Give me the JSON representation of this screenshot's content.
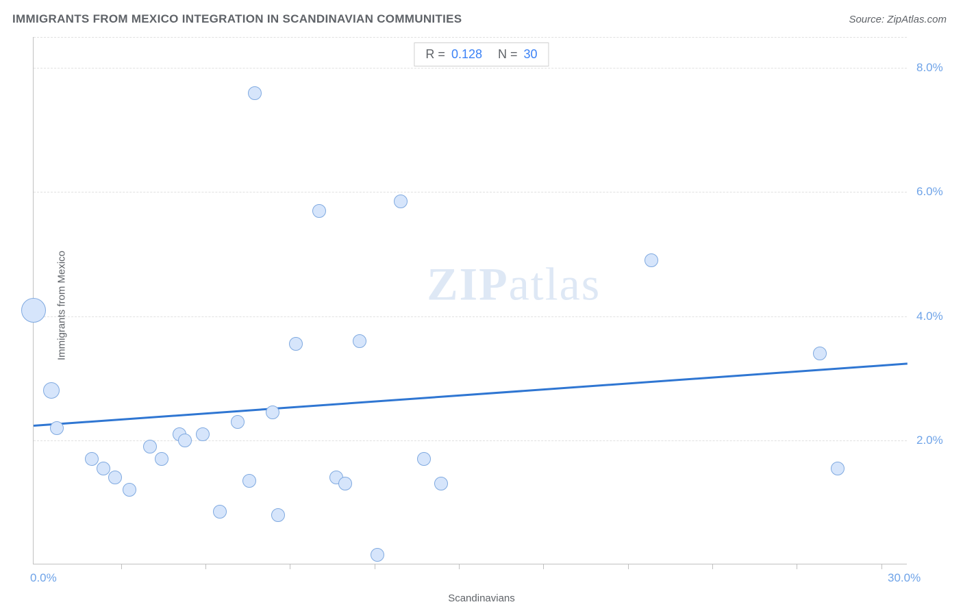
{
  "title": "IMMIGRANTS FROM MEXICO INTEGRATION IN SCANDINAVIAN COMMUNITIES",
  "source": "Source: ZipAtlas.com",
  "watermark_bold": "ZIP",
  "watermark_rest": "atlas",
  "legend": {
    "r_key": "R =",
    "r_val": "0.128",
    "n_key": "N =",
    "n_val": "30"
  },
  "axes": {
    "x_label": "Scandinavians",
    "y_label": "Immigrants from Mexico",
    "x_min_label": "0.0%",
    "x_max_label": "30.0%",
    "y_ticks": [
      {
        "v": 2.0,
        "label": "2.0%"
      },
      {
        "v": 4.0,
        "label": "4.0%"
      },
      {
        "v": 6.0,
        "label": "6.0%"
      },
      {
        "v": 8.0,
        "label": "8.0%"
      }
    ],
    "y_top_extra": 8.5
  },
  "scale": {
    "xlim": [
      0.0,
      30.0
    ],
    "ylim": [
      0.0,
      8.5
    ]
  },
  "chart": {
    "type": "scatter",
    "point_fill": "#d6e5fb",
    "point_stroke": "#7fa9e0",
    "point_stroke_width": 1.5,
    "default_radius": 10,
    "grid_color": "#e0e0e0",
    "axis_line_color": "#c0c0c0",
    "plot_bg": "#ffffff",
    "x_ticks_pos": [
      3.0,
      5.9,
      8.8,
      11.7,
      14.6,
      17.5,
      20.4,
      23.3,
      26.2,
      29.1
    ]
  },
  "trendline": {
    "color": "#2f76d2",
    "width": 2.5,
    "y_at_x0": 2.25,
    "y_at_xmax": 3.25
  },
  "points": [
    {
      "x": 0.0,
      "y": 4.1,
      "r": 18
    },
    {
      "x": 0.6,
      "y": 2.8,
      "r": 12
    },
    {
      "x": 0.8,
      "y": 2.2
    },
    {
      "x": 2.0,
      "y": 1.7
    },
    {
      "x": 2.4,
      "y": 1.55
    },
    {
      "x": 2.8,
      "y": 1.4
    },
    {
      "x": 3.3,
      "y": 1.2
    },
    {
      "x": 4.0,
      "y": 1.9
    },
    {
      "x": 4.4,
      "y": 1.7
    },
    {
      "x": 5.0,
      "y": 2.1
    },
    {
      "x": 5.2,
      "y": 2.0
    },
    {
      "x": 5.8,
      "y": 2.1
    },
    {
      "x": 6.4,
      "y": 0.85
    },
    {
      "x": 7.0,
      "y": 2.3
    },
    {
      "x": 7.4,
      "y": 1.35
    },
    {
      "x": 7.6,
      "y": 7.6
    },
    {
      "x": 8.2,
      "y": 2.45
    },
    {
      "x": 8.4,
      "y": 0.8
    },
    {
      "x": 9.0,
      "y": 3.55
    },
    {
      "x": 9.8,
      "y": 5.7
    },
    {
      "x": 10.4,
      "y": 1.4
    },
    {
      "x": 10.7,
      "y": 1.3
    },
    {
      "x": 11.2,
      "y": 3.6
    },
    {
      "x": 11.8,
      "y": 0.15
    },
    {
      "x": 12.6,
      "y": 5.85
    },
    {
      "x": 13.4,
      "y": 1.7
    },
    {
      "x": 14.0,
      "y": 1.3
    },
    {
      "x": 21.2,
      "y": 4.9
    },
    {
      "x": 27.0,
      "y": 3.4
    },
    {
      "x": 27.6,
      "y": 1.55
    }
  ]
}
